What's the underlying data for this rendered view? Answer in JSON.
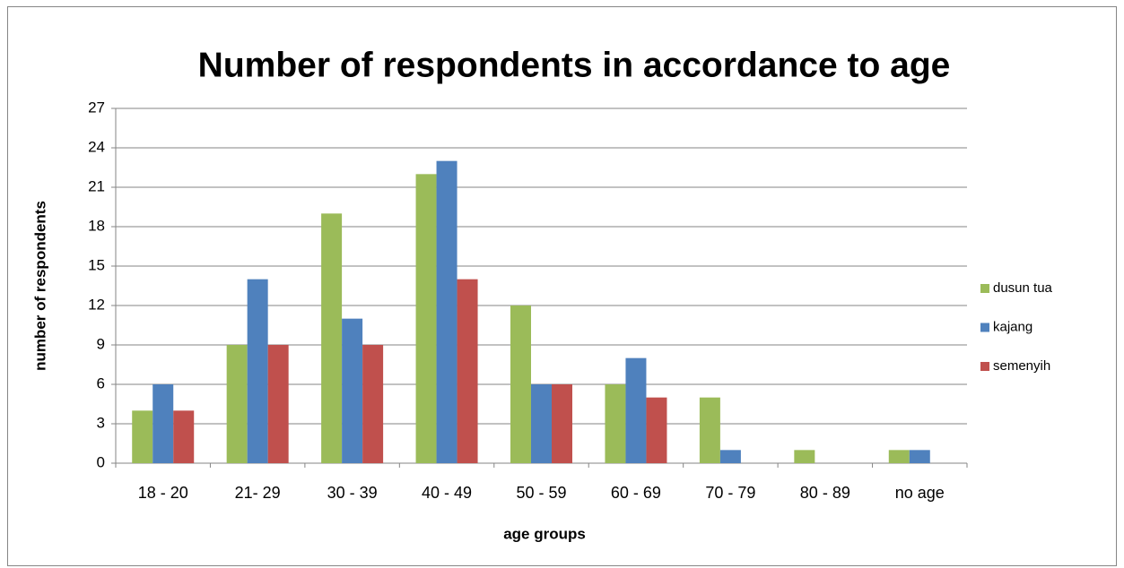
{
  "chart_data": {
    "type": "bar",
    "title": "Number of respondents in accordance to age",
    "x_label": "age groups",
    "y_label": "number of respondents",
    "categories": [
      "18 - 20",
      "21- 29",
      "30 - 39",
      "40 - 49",
      "50 - 59",
      "60 - 69",
      "70 - 79",
      "80 - 89",
      "no age"
    ],
    "series": [
      {
        "name": "dusun tua",
        "color": "#9bbb59",
        "values": [
          4,
          9,
          19,
          22,
          12,
          6,
          5,
          1,
          1
        ]
      },
      {
        "name": "kajang",
        "color": "#4f81bd",
        "values": [
          6,
          14,
          11,
          23,
          6,
          8,
          1,
          0,
          1
        ]
      },
      {
        "name": "semenyih",
        "color": "#c0504d",
        "values": [
          4,
          9,
          9,
          14,
          6,
          5,
          0,
          0,
          0
        ]
      }
    ],
    "ylim": [
      0,
      27
    ],
    "yticks": [
      0,
      3,
      6,
      9,
      12,
      15,
      18,
      21,
      24,
      27
    ],
    "grid": true,
    "legend": "right"
  }
}
